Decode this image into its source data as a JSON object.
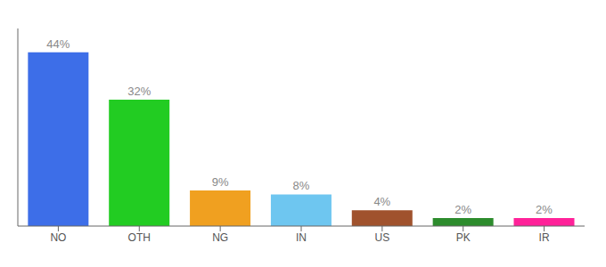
{
  "chart_data": {
    "type": "bar",
    "categories": [
      "NO",
      "OTH",
      "NG",
      "IN",
      "US",
      "PK",
      "IR"
    ],
    "values": [
      44,
      32,
      9,
      8,
      4,
      2,
      2
    ],
    "value_labels": [
      "44%",
      "32%",
      "9%",
      "8%",
      "4%",
      "2%",
      "2%"
    ],
    "colors": [
      "#3d6ee8",
      "#22cc22",
      "#f0a020",
      "#6ec6f0",
      "#a0522d",
      "#2d8c2d",
      "#ff2299"
    ],
    "ylim": [
      0,
      50
    ],
    "data_labels": true,
    "tick_labels": "x",
    "grid": false
  }
}
